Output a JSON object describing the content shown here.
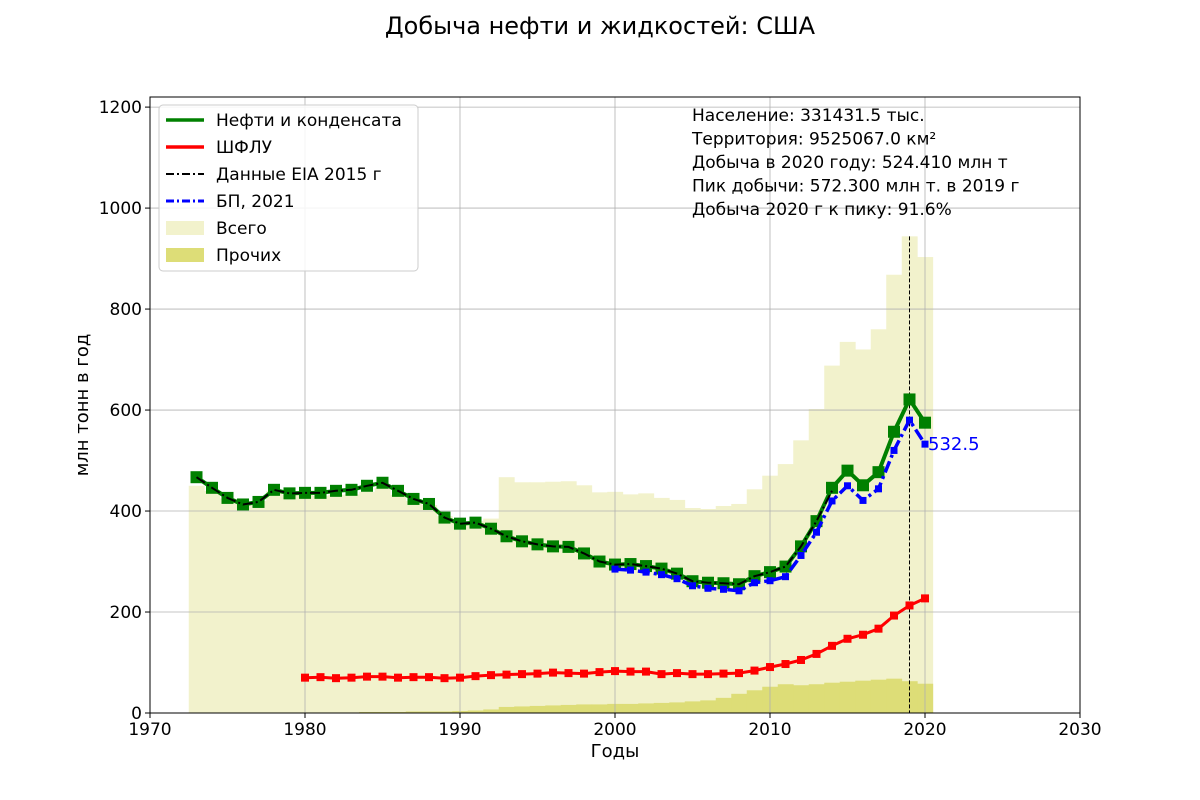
{
  "chart_data": {
    "type": "line",
    "title": "Добыча нефти и жидкостей: США",
    "xlabel": "Годы",
    "ylabel": "млн тонн в год",
    "xlim": [
      1970,
      2030
    ],
    "ylim": [
      0,
      1220
    ],
    "xticks": [
      1970,
      1980,
      1990,
      2000,
      2010,
      2020,
      2030
    ],
    "yticks": [
      0,
      200,
      400,
      600,
      800,
      1000,
      1200
    ],
    "grid": true,
    "legend_position": "top-left",
    "legend": [
      {
        "label": "Нефти и конденсата",
        "kind": "line",
        "color": "#008000"
      },
      {
        "label": "ШФЛУ",
        "kind": "line",
        "color": "#ff0000"
      },
      {
        "label": "Данные EIA 2015 г",
        "kind": "dashdot",
        "color": "#000000"
      },
      {
        "label": "БП, 2021",
        "kind": "dashdot",
        "color": "#0000ff"
      },
      {
        "label": "Всего",
        "kind": "patch",
        "color": "#f2f2cc"
      },
      {
        "label": "Прочих",
        "kind": "patch",
        "color": "#dddd77"
      }
    ],
    "info_lines": [
      "Население: 331431.5 тыс.",
      "Территория: 9525067.0 км²",
      "Добыча в 2020 году: 524.410 млн т",
      "Пик добычи: 572.300 млн т. в 2019 г",
      "Добыча 2020 г к пику: 91.6%"
    ],
    "annotation": {
      "text": "532.5",
      "x": 2020,
      "y": 532.5,
      "color": "#0000ff"
    },
    "peak_line_x": 2019,
    "series": [
      {
        "name": "Нефти и конденсата",
        "color": "#008000",
        "x": [
          1973,
          1974,
          1975,
          1976,
          1977,
          1978,
          1979,
          1980,
          1981,
          1982,
          1983,
          1984,
          1985,
          1986,
          1987,
          1988,
          1989,
          1990,
          1991,
          1992,
          1993,
          1994,
          1995,
          1996,
          1997,
          1998,
          1999,
          2000,
          2001,
          2002,
          2003,
          2004,
          2005,
          2006,
          2007,
          2008,
          2009,
          2010,
          2011,
          2012,
          2013,
          2014,
          2015,
          2016,
          2017,
          2018,
          2019,
          2020
        ],
        "y": [
          467,
          446,
          426,
          413,
          418,
          442,
          435,
          436,
          436,
          440,
          442,
          450,
          456,
          440,
          424,
          414,
          387,
          375,
          377,
          365,
          350,
          340,
          334,
          330,
          329,
          316,
          300,
          294,
          295,
          291,
          286,
          276,
          261,
          258,
          257,
          255,
          271,
          279,
          290,
          330,
          380,
          446,
          480,
          451,
          477,
          557,
          621,
          575
        ]
      },
      {
        "name": "ШФЛУ",
        "color": "#ff0000",
        "x": [
          1980,
          1981,
          1982,
          1983,
          1984,
          1985,
          1986,
          1987,
          1988,
          1989,
          1990,
          1991,
          1992,
          1993,
          1994,
          1995,
          1996,
          1997,
          1998,
          1999,
          2000,
          2001,
          2002,
          2003,
          2004,
          2005,
          2006,
          2007,
          2008,
          2009,
          2010,
          2011,
          2012,
          2013,
          2014,
          2015,
          2016,
          2017,
          2018,
          2019,
          2020
        ],
        "y": [
          70,
          71,
          69,
          70,
          72,
          72,
          70,
          71,
          71,
          69,
          70,
          73,
          75,
          76,
          77,
          78,
          80,
          79,
          78,
          81,
          83,
          82,
          82,
          77,
          79,
          77,
          77,
          78,
          79,
          84,
          91,
          97,
          105,
          117,
          133,
          147,
          155,
          167,
          193,
          213,
          227
        ]
      },
      {
        "name": "Данные EIA 2015 г",
        "color": "#000000",
        "x": [
          1973,
          1974,
          1975,
          1976,
          1977,
          1978,
          1979,
          1980,
          1981,
          1982,
          1983,
          1984,
          1985,
          1986,
          1987,
          1988,
          1989,
          1990,
          1991,
          1992,
          1993,
          1994,
          1995,
          1996,
          1997,
          1998,
          1999,
          2000,
          2001,
          2002,
          2003,
          2004,
          2005,
          2006,
          2007,
          2008,
          2009,
          2010,
          2011,
          2012,
          2013,
          2014
        ],
        "y": [
          467,
          446,
          426,
          413,
          418,
          442,
          435,
          436,
          436,
          440,
          442,
          450,
          456,
          440,
          424,
          414,
          387,
          375,
          377,
          365,
          350,
          340,
          334,
          330,
          329,
          316,
          300,
          294,
          295,
          291,
          286,
          276,
          261,
          258,
          257,
          255,
          271,
          279,
          290,
          330,
          380,
          440
        ]
      },
      {
        "name": "БП, 2021",
        "color": "#0000ff",
        "x": [
          2000,
          2001,
          2002,
          2003,
          2004,
          2005,
          2006,
          2007,
          2008,
          2009,
          2010,
          2011,
          2012,
          2013,
          2014,
          2015,
          2016,
          2017,
          2018,
          2019,
          2020
        ],
        "y": [
          285,
          283,
          279,
          274,
          266,
          252,
          247,
          245,
          242,
          258,
          262,
          270,
          312,
          358,
          420,
          450,
          421,
          444,
          520,
          580,
          532.5
        ]
      }
    ],
    "bars": [
      {
        "name": "Всего",
        "color": "#f2f2cc",
        "x": [
          1973,
          1974,
          1975,
          1976,
          1977,
          1978,
          1979,
          1980,
          1981,
          1982,
          1983,
          1984,
          1985,
          1986,
          1987,
          1988,
          1989,
          1990,
          1991,
          1992,
          1993,
          1994,
          1995,
          1996,
          1997,
          1998,
          1999,
          2000,
          2001,
          2002,
          2003,
          2004,
          2005,
          2006,
          2007,
          2008,
          2009,
          2010,
          2011,
          2012,
          2013,
          2014,
          2015,
          2016,
          2017,
          2018,
          2019,
          2020
        ],
        "y": [
          450,
          440,
          425,
          415,
          420,
          440,
          432,
          432,
          430,
          432,
          433,
          438,
          446,
          432,
          420,
          412,
          390,
          378,
          380,
          385,
          467,
          457,
          457,
          458,
          459,
          451,
          437,
          438,
          433,
          435,
          426,
          422,
          406,
          404,
          410,
          414,
          443,
          470,
          493,
          540,
          602,
          688,
          735,
          720,
          760,
          868,
          944,
          903
        ]
      },
      {
        "name": "Прочих",
        "color": "#dddd77",
        "x": [
          1973,
          1974,
          1975,
          1976,
          1977,
          1978,
          1979,
          1980,
          1981,
          1982,
          1983,
          1984,
          1985,
          1986,
          1987,
          1988,
          1989,
          1990,
          1991,
          1992,
          1993,
          1994,
          1995,
          1996,
          1997,
          1998,
          1999,
          2000,
          2001,
          2002,
          2003,
          2004,
          2005,
          2006,
          2007,
          2008,
          2009,
          2010,
          2011,
          2012,
          2013,
          2014,
          2015,
          2016,
          2017,
          2018,
          2019,
          2020
        ],
        "y": [
          0,
          0,
          0,
          0,
          0,
          0,
          0,
          0,
          1,
          1,
          1,
          2,
          2,
          2,
          3,
          3,
          3,
          4,
          5,
          7,
          12,
          13,
          14,
          15,
          16,
          17,
          17,
          18,
          18,
          19,
          20,
          21,
          23,
          25,
          30,
          38,
          45,
          52,
          57,
          55,
          57,
          60,
          62,
          64,
          66,
          68,
          63,
          58
        ]
      }
    ]
  }
}
